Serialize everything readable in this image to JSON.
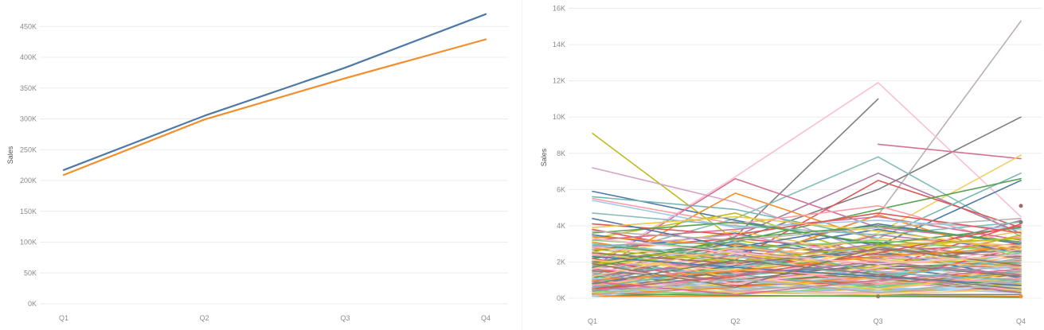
{
  "chart_data": [
    {
      "type": "line",
      "title": "",
      "ylabel": "Sales",
      "categories": [
        "Q1",
        "Q2",
        "Q3",
        "Q4"
      ],
      "ylim": [
        0,
        480000
      ],
      "yticks": [
        0,
        50000,
        100000,
        150000,
        200000,
        250000,
        300000,
        350000,
        400000,
        450000
      ],
      "ytick_labels": [
        "0K",
        "50K",
        "100K",
        "150K",
        "200K",
        "250K",
        "300K",
        "350K",
        "400K",
        "450K"
      ],
      "grid": true,
      "legend": "none",
      "series": [
        {
          "color": "#4e79a7",
          "values": [
            217000,
            305000,
            383000,
            470000
          ]
        },
        {
          "color": "#f28e2b",
          "values": [
            209000,
            299000,
            366000,
            429000
          ]
        }
      ]
    },
    {
      "type": "line",
      "title": "",
      "ylabel": "Sales",
      "categories": [
        "Q1",
        "Q2",
        "Q3",
        "Q4"
      ],
      "ylim": [
        0,
        16200
      ],
      "yticks": [
        0,
        2000,
        4000,
        6000,
        8000,
        10000,
        12000,
        14000,
        16000
      ],
      "ytick_labels": [
        "0K",
        "2K",
        "4K",
        "6K",
        "8K",
        "10K",
        "12K",
        "14K",
        "16K"
      ],
      "grid": true,
      "legend": "none",
      "palette": [
        "#4e79a7",
        "#f28e2b",
        "#e15759",
        "#76b7b2",
        "#59a14f",
        "#edc948",
        "#b07aa1",
        "#ff9da7",
        "#9c755f",
        "#bab0ac",
        "#7f7f7f",
        "#bcbd22",
        "#d37295",
        "#a0cbe8",
        "#ffbe7d",
        "#8cd17d",
        "#f1ce63",
        "#86bcb6",
        "#d4a6c8",
        "#fabfd2"
      ],
      "series": [
        {
          "color": "#bab0ac",
          "values": [
            300,
            1800,
            4600,
            15300
          ]
        },
        {
          "color": "#7f7f7f",
          "values": [
            900,
            3200,
            6000,
            10000
          ]
        },
        {
          "color": "#7f7f7f",
          "values": [
            600,
            3400,
            11000,
            null
          ]
        },
        {
          "color": "#fabfd2",
          "values": [
            1800,
            6700,
            11900,
            4500
          ]
        },
        {
          "color": "#bcbd22",
          "values": [
            9100,
            3200,
            2100,
            1800
          ]
        },
        {
          "color": "#d37295",
          "values": [
            null,
            null,
            8500,
            7700
          ]
        },
        {
          "color": "#f1ce63",
          "values": [
            800,
            1400,
            3600,
            7900
          ]
        },
        {
          "color": "#86bcb6",
          "values": [
            2200,
            4400,
            7800,
            3400
          ]
        },
        {
          "color": "#d4a6c8",
          "values": [
            7200,
            5300,
            2400,
            1600
          ]
        },
        {
          "color": "#b07aa1",
          "values": [
            1300,
            3400,
            6900,
            3600
          ]
        },
        {
          "color": "#e15759",
          "values": [
            1200,
            2100,
            6500,
            3900
          ]
        },
        {
          "color": "#4e79a7",
          "values": [
            5900,
            4300,
            2900,
            6500
          ]
        },
        {
          "color": "#76b7b2",
          "values": [
            5600,
            4900,
            3300,
            6900
          ]
        },
        {
          "color": "#59a14f",
          "values": [
            2200,
            3100,
            4900,
            6600
          ]
        },
        {
          "color": "#d37295",
          "values": [
            1700,
            6600,
            3900,
            3100
          ]
        },
        {
          "color": "#f28e2b",
          "values": [
            1500,
            5800,
            3200,
            2600
          ]
        },
        {
          "color": "#ff9da7",
          "values": [
            5500,
            4100,
            5100,
            2900
          ]
        },
        {
          "color": "#bcbd22",
          "values": [
            3300,
            4700,
            2200,
            1900
          ]
        },
        {
          "color": "#e15759",
          "values": [
            3800,
            2300,
            1600,
            4100
          ]
        },
        {
          "color": "#4e79a7",
          "values": [
            2600,
            3600,
            1900,
            2400
          ]
        },
        {
          "color": "#f28e2b",
          "values": [
            3100,
            1900,
            4600,
            2200
          ]
        },
        {
          "color": "#59a14f",
          "values": [
            2000,
            2800,
            3100,
            1700
          ]
        },
        {
          "color": "#edc948",
          "values": [
            1700,
            2200,
            2800,
            3300
          ]
        },
        {
          "color": "#b07aa1",
          "values": [
            2400,
            1500,
            3500,
            2700
          ]
        },
        {
          "color": "#9c755f",
          "values": [
            1100,
            2600,
            1800,
            2900
          ]
        },
        {
          "color": "#a0cbe8",
          "values": [
            2900,
            2000,
            2500,
            1400
          ]
        },
        {
          "color": "#ffbe7d",
          "values": [
            1900,
            3000,
            1400,
            2300
          ]
        },
        {
          "color": "#8cd17d",
          "values": [
            900,
            1700,
            2300,
            2000
          ]
        },
        {
          "color": "#fabfd2",
          "values": [
            1400,
            2400,
            1000,
            1600
          ]
        },
        {
          "color": "#76b7b2",
          "values": [
            2100,
            1200,
            2000,
            1200
          ]
        },
        {
          "color": "#4e79a7",
          "values": [
            1000,
            1400,
            1700,
            900
          ]
        },
        {
          "color": "#e15759",
          "values": [
            1600,
            900,
            1300,
            2100
          ]
        },
        {
          "color": "#f28e2b",
          "values": [
            700,
            1100,
            900,
            1500
          ]
        },
        {
          "color": "#59a14f",
          "values": [
            1200,
            800,
            1500,
            700
          ]
        },
        {
          "color": "#edc948",
          "values": [
            500,
            1300,
            600,
            1100
          ]
        },
        {
          "color": "#d4a6c8",
          "values": [
            900,
            600,
            1100,
            800
          ]
        },
        {
          "color": "#9c755f",
          "values": [
            400,
            900,
            700,
            1300
          ]
        },
        {
          "color": "#bab0ac",
          "values": [
            600,
            500,
            800,
            500
          ]
        },
        {
          "color": "#86bcb6",
          "values": [
            300,
            700,
            400,
            900
          ]
        },
        {
          "color": "#bcbd22",
          "values": [
            800,
            300,
            500,
            400
          ]
        },
        {
          "color": "#ff9da7",
          "values": [
            200,
            400,
            300,
            600
          ]
        },
        {
          "color": "#a0cbe8",
          "values": [
            500,
            200,
            600,
            300
          ]
        },
        {
          "color": "#7f7f7f",
          "values": [
            100,
            300,
            200,
            200
          ]
        },
        {
          "color": "#f28e2b",
          "values": [
            100,
            100,
            150,
            100
          ]
        },
        {
          "color": "#59a14f",
          "values": [
            250,
            150,
            100,
            50
          ]
        },
        {
          "color": "#b07aa1",
          "values": [
            1800,
            2700,
            2200,
            4300
          ]
        },
        {
          "color": "#e15759",
          "values": [
            2700,
            3300,
            2600,
            3000
          ]
        },
        {
          "color": "#4e79a7",
          "values": [
            3500,
            2500,
            3800,
            2500
          ]
        },
        {
          "color": "#edc948",
          "values": [
            2300,
            3700,
            2400,
            3700
          ]
        },
        {
          "color": "#76b7b2",
          "values": [
            1300,
            1900,
            2700,
            1900
          ]
        },
        {
          "color": "#8cd17d",
          "values": [
            2500,
            1600,
            1200,
            2600
          ]
        },
        {
          "color": "#ffbe7d",
          "values": [
            1000,
            2300,
            1900,
            1000
          ]
        },
        {
          "color": "#d37295",
          "values": [
            600,
            1000,
            1600,
            1800
          ]
        },
        {
          "color": "#9c755f",
          "values": [
            2000,
            1100,
            800,
            1400
          ]
        },
        {
          "color": "#86bcb6",
          "values": [
            1400,
            700,
            1200,
            2500
          ]
        },
        {
          "color": "#f1ce63",
          "values": [
            700,
            1600,
            1000,
            600
          ]
        },
        {
          "color": "#a0cbe8",
          "values": [
            1100,
            500,
            1400,
            1700
          ]
        },
        {
          "color": "#fabfd2",
          "values": [
            400,
            1200,
            500,
            1200
          ]
        },
        {
          "color": "#bcbd22",
          "values": [
            1500,
            1000,
            300,
            800
          ]
        },
        {
          "color": "#59a14f",
          "values": [
            3000,
            2100,
            1700,
            2000
          ]
        },
        {
          "color": "#4e79a7",
          "values": [
            800,
            1800,
            2600,
            1100
          ]
        },
        {
          "color": "#e15759",
          "values": [
            2200,
            700,
            900,
            2800
          ]
        },
        {
          "color": "#f28e2b",
          "values": [
            3400,
            2900,
            2000,
            1300
          ]
        },
        {
          "color": "#b07aa1",
          "values": [
            1200,
            2000,
            3000,
            2200
          ]
        },
        {
          "color": "#76b7b2",
          "values": [
            1800,
            1300,
            600,
            1500
          ]
        },
        {
          "color": "#edc948",
          "values": [
            300,
            800,
            1800,
            2400
          ]
        },
        {
          "color": "#d4a6c8",
          "values": [
            1600,
            2600,
            1500,
            700
          ]
        },
        {
          "color": "#ff9da7",
          "values": [
            2400,
            1400,
            2100,
            3400
          ]
        },
        {
          "color": "#9c755f",
          "values": [
            500,
            1500,
            1100,
            300
          ]
        },
        {
          "color": "#bab0ac",
          "values": [
            1300,
            400,
            900,
            1900
          ]
        },
        {
          "color": "#7f7f7f",
          "values": [
            2000,
            3000,
            2400,
            2600
          ]
        },
        {
          "color": "#8cd17d",
          "values": [
            400,
            200,
            700,
            1000
          ]
        },
        {
          "color": "#ffbe7d",
          "values": [
            2800,
            2200,
            3300,
            2900
          ]
        },
        {
          "color": "#f1ce63",
          "values": [
            1000,
            300,
            200,
            500
          ]
        },
        {
          "color": "#d37295",
          "values": [
            3200,
            3800,
            4500,
            3200
          ]
        },
        {
          "color": "#86bcb6",
          "values": [
            4700,
            4000,
            3500,
            4200
          ]
        },
        {
          "color": "#a0cbe8",
          "values": [
            5400,
            3900,
            4300,
            3800
          ]
        },
        {
          "color": "#e15759",
          "values": [
            4100,
            3500,
            4700,
            3600
          ]
        },
        {
          "color": "#59a14f",
          "values": [
            3600,
            4200,
            3000,
            3900
          ]
        },
        {
          "color": "#4e79a7",
          "values": [
            4400,
            2800,
            4100,
            3000
          ]
        },
        {
          "color": "#f28e2b",
          "values": [
            200,
            600,
            1200,
            2100
          ]
        },
        {
          "color": "#edc948",
          "values": [
            2600,
            1100,
            500,
            1400
          ]
        },
        {
          "color": "#b07aa1",
          "values": [
            900,
            2400,
            1300,
            300
          ]
        },
        {
          "color": "#76b7b2",
          "values": [
            600,
            1700,
            2900,
            1600
          ]
        },
        {
          "color": "#bcbd22",
          "values": [
            1900,
            2500,
            1600,
            3500
          ]
        },
        {
          "color": "#9c755f",
          "values": [
            2500,
            1900,
            2700,
            2300
          ]
        },
        {
          "color": "#bab0ac",
          "values": [
            3700,
            3200,
            3900,
            4400
          ]
        },
        {
          "color": "#7f7f7f",
          "values": [
            1500,
            1000,
            1900,
            1200
          ]
        },
        {
          "color": "#ff9da7",
          "values": [
            700,
            1900,
            800,
            1100
          ]
        },
        {
          "color": "#d4a6c8",
          "values": [
            2800,
            3500,
            2300,
            2000
          ]
        },
        {
          "color": "#fabfd2",
          "values": [
            1700,
            800,
            1700,
            2700
          ]
        },
        {
          "color": "#8cd17d",
          "values": [
            3200,
            2700,
            3200,
            2500
          ]
        },
        {
          "color": "#a0cbe8",
          "values": [
            100,
            1000,
            400,
            700
          ]
        },
        {
          "color": "#ffbe7d",
          "values": [
            1200,
            2800,
            2100,
            1700
          ]
        },
        {
          "color": "#f1ce63",
          "values": [
            2100,
            1500,
            2600,
            1800
          ]
        },
        {
          "color": "#86bcb6",
          "values": [
            3000,
            2300,
            1100,
            2200
          ]
        },
        {
          "color": "#d37295",
          "values": [
            900,
            200,
            1000,
            1600
          ]
        },
        {
          "color": "#59a14f",
          "values": [
            1700,
            3300,
            4000,
            3100
          ]
        },
        {
          "color": "#e15759",
          "values": [
            500,
            1200,
            2500,
            4000
          ]
        },
        {
          "color": "#4e79a7",
          "values": [
            2300,
            1700,
            1200,
            700
          ]
        },
        {
          "color": "#f28e2b",
          "values": [
            1000,
            1500,
            2300,
            2800
          ]
        },
        {
          "color": "#76b7b2",
          "values": [
            2900,
            3100,
            1400,
            1000
          ]
        },
        {
          "color": "#b07aa1",
          "values": [
            400,
            1300,
            2000,
            1300
          ]
        },
        {
          "color": "#edc948",
          "values": [
            3900,
            4500,
            3700,
            2700
          ]
        },
        {
          "color": "#9c755f",
          "values": [
            1900,
            600,
            2800,
            1800
          ]
        },
        {
          "color": "#bab0ac",
          "values": [
            200,
            1100,
            300,
            1000
          ]
        },
        {
          "color": "#bcbd22",
          "values": [
            2700,
            2000,
            2900,
            3300
          ]
        },
        {
          "color": "#7f7f7f",
          "values": [
            800,
            2100,
            1300,
            500
          ]
        },
        {
          "color": "#fabfd2",
          "values": [
            3300,
            2500,
            1900,
            2400
          ]
        }
      ],
      "markers": [
        {
          "x": "Q4",
          "y": 5100,
          "color": "#9c6b6b"
        },
        {
          "x": "Q4",
          "y": 4200,
          "color": "#7f7f7f"
        },
        {
          "x": "Q3",
          "y": 100,
          "color": "#9c755f"
        },
        {
          "x": "Q4",
          "y": 100,
          "color": "#f28e2b"
        }
      ]
    }
  ]
}
